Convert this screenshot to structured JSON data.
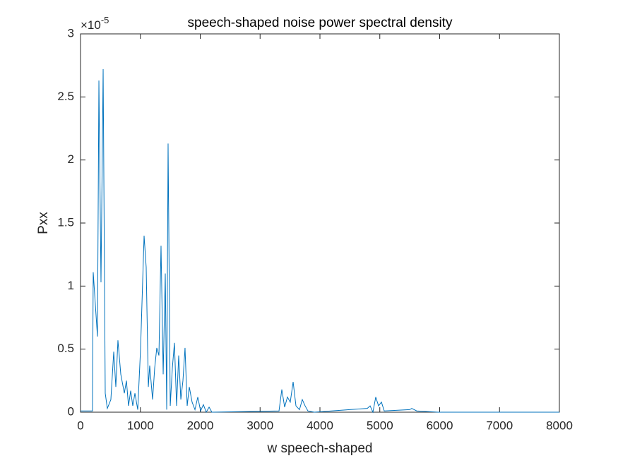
{
  "chart_data": {
    "type": "line",
    "title": "speech-shaped noise power spectral density",
    "x_label": "w speech-shaped",
    "y_label": "Pxx",
    "y_exponent": {
      "base": "×10",
      "power": "-5"
    },
    "color": "#0072bd",
    "x": [
      0,
      200,
      212,
      283,
      307,
      342,
      378,
      413,
      448,
      507,
      555,
      590,
      625,
      673,
      732,
      767,
      802,
      838,
      873,
      909,
      956,
      1003,
      1062,
      1097,
      1133,
      1156,
      1204,
      1239,
      1274,
      1310,
      1345,
      1381,
      1416,
      1440,
      1463,
      1499,
      1534,
      1569,
      1605,
      1640,
      1676,
      1711,
      1746,
      1782,
      1817,
      1864,
      1912,
      1959,
      2006,
      2053,
      2100,
      2148,
      2195,
      3316,
      3363,
      3410,
      3457,
      3504,
      3552,
      3599,
      3658,
      3705,
      3752,
      3799,
      3906,
      4791,
      4838,
      4885,
      4932,
      4979,
      5027,
      5074,
      5498,
      5534,
      5617,
      5971,
      8000
    ],
    "values": [
      0.01,
      0.01,
      1.11,
      0.6,
      2.63,
      1.03,
      2.72,
      0.15,
      0.03,
      0.1,
      0.48,
      0.2,
      0.57,
      0.3,
      0.15,
      0.25,
      0.05,
      0.17,
      0.05,
      0.15,
      0.02,
      0.5,
      1.4,
      1.15,
      0.2,
      0.37,
      0.1,
      0.35,
      0.51,
      0.45,
      1.32,
      0.3,
      1.1,
      0.02,
      2.13,
      0.05,
      0.35,
      0.55,
      0.05,
      0.45,
      0.1,
      0.25,
      0.51,
      0.05,
      0.2,
      0.08,
      0.02,
      0.12,
      0.01,
      0.06,
      0,
      0.04,
      0,
      0.01,
      0.18,
      0.04,
      0.12,
      0.08,
      0.24,
      0.05,
      0.02,
      0.1,
      0.05,
      0.01,
      0,
      0.03,
      0.05,
      0,
      0.12,
      0.05,
      0.08,
      0.01,
      0.02,
      0.03,
      0.01,
      0,
      0
    ],
    "xlim": [
      0,
      8000
    ],
    "xticks": [
      0,
      1000,
      2000,
      3000,
      4000,
      5000,
      6000,
      7000,
      8000
    ],
    "ylim": [
      0,
      3
    ],
    "yticks": [
      0,
      0.5,
      1,
      1.5,
      2,
      2.5,
      3
    ]
  }
}
